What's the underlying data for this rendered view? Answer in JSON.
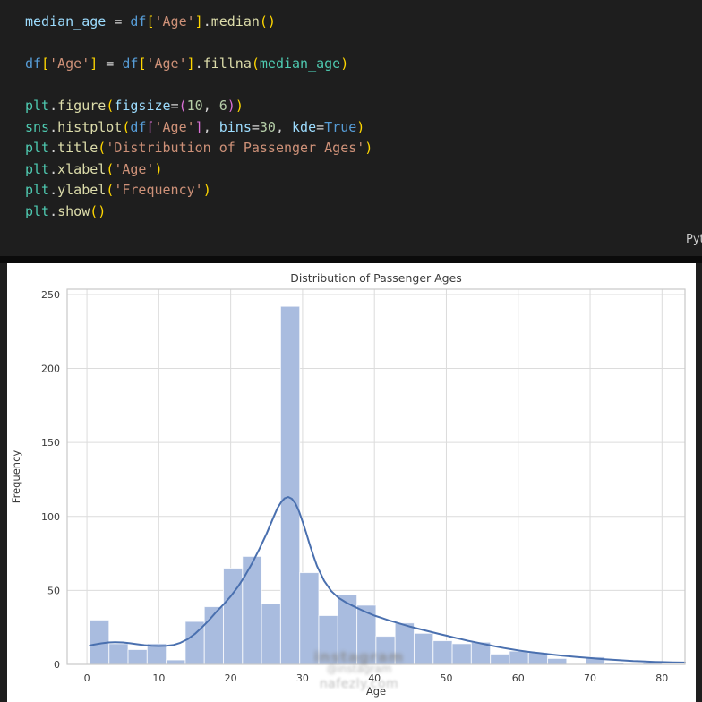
{
  "editor": {
    "background": "#1e1e1e",
    "language_label": "Pyt",
    "code_lines": [
      [
        [
          "var",
          "median_age"
        ],
        [
          "op",
          " = "
        ],
        [
          "df",
          "df"
        ],
        [
          "b1",
          "["
        ],
        [
          "str",
          "'Age'"
        ],
        [
          "b1",
          "]"
        ],
        [
          "op",
          "."
        ],
        [
          "fn",
          "median"
        ],
        [
          "b1",
          "()"
        ]
      ],
      [],
      [
        [
          "df",
          "df"
        ],
        [
          "b1",
          "["
        ],
        [
          "str",
          "'Age'"
        ],
        [
          "b1",
          "]"
        ],
        [
          "op",
          " = "
        ],
        [
          "df",
          "df"
        ],
        [
          "b1",
          "["
        ],
        [
          "str",
          "'Age'"
        ],
        [
          "b1",
          "]"
        ],
        [
          "op",
          "."
        ],
        [
          "fn",
          "fillna"
        ],
        [
          "b1",
          "("
        ],
        [
          "teal",
          "median_age"
        ],
        [
          "b1",
          ")"
        ]
      ],
      [],
      [
        [
          "mod",
          "plt"
        ],
        [
          "op",
          "."
        ],
        [
          "fn",
          "figure"
        ],
        [
          "b1",
          "("
        ],
        [
          "var",
          "figsize"
        ],
        [
          "op",
          "="
        ],
        [
          "b2",
          "("
        ],
        [
          "num",
          "10"
        ],
        [
          "op",
          ", "
        ],
        [
          "num",
          "6"
        ],
        [
          "b2",
          ")"
        ],
        [
          "b1",
          ")"
        ]
      ],
      [
        [
          "mod",
          "sns"
        ],
        [
          "op",
          "."
        ],
        [
          "fn",
          "histplot"
        ],
        [
          "b1",
          "("
        ],
        [
          "df",
          "df"
        ],
        [
          "b2",
          "["
        ],
        [
          "str",
          "'Age'"
        ],
        [
          "b2",
          "]"
        ],
        [
          "op",
          ", "
        ],
        [
          "var",
          "bins"
        ],
        [
          "op",
          "="
        ],
        [
          "num",
          "30"
        ],
        [
          "op",
          ", "
        ],
        [
          "var",
          "kde"
        ],
        [
          "op",
          "="
        ],
        [
          "kw",
          "True"
        ],
        [
          "b1",
          ")"
        ]
      ],
      [
        [
          "mod",
          "plt"
        ],
        [
          "op",
          "."
        ],
        [
          "fn",
          "title"
        ],
        [
          "b1",
          "("
        ],
        [
          "str",
          "'Distribution of Passenger Ages'"
        ],
        [
          "b1",
          ")"
        ]
      ],
      [
        [
          "mod",
          "plt"
        ],
        [
          "op",
          "."
        ],
        [
          "fn",
          "xlabel"
        ],
        [
          "b1",
          "("
        ],
        [
          "str",
          "'Age'"
        ],
        [
          "b1",
          ")"
        ]
      ],
      [
        [
          "mod",
          "plt"
        ],
        [
          "op",
          "."
        ],
        [
          "fn",
          "ylabel"
        ],
        [
          "b1",
          "("
        ],
        [
          "str",
          "'Frequency'"
        ],
        [
          "b1",
          ")"
        ]
      ],
      [
        [
          "mod",
          "plt"
        ],
        [
          "op",
          "."
        ],
        [
          "fn",
          "show"
        ],
        [
          "b1",
          "()"
        ]
      ]
    ]
  },
  "watermark": {
    "line1": "instagram",
    "line2": "@instagram",
    "line3": "nafezly.com"
  },
  "chart_data": {
    "type": "bar",
    "subtype": "histogram-with-kde",
    "title": "Distribution of Passenger Ages",
    "xlabel": "Age",
    "ylabel": "Frequency",
    "grid": true,
    "legend": false,
    "xlim": [
      -2.75,
      83.2
    ],
    "ylim": [
      0,
      253.6
    ],
    "xticks": [
      0,
      10,
      20,
      30,
      40,
      50,
      60,
      70,
      80
    ],
    "yticks": [
      0,
      50,
      100,
      150,
      200,
      250
    ],
    "bins": 30,
    "bin_start": 0.42,
    "bin_width": 2.6527,
    "values": [
      30,
      14,
      10,
      14,
      3,
      29,
      39,
      65,
      73,
      41,
      242,
      62,
      33,
      47,
      40,
      19,
      28,
      21,
      16,
      14,
      15,
      7,
      9,
      8,
      4,
      0,
      5,
      1,
      0,
      1
    ],
    "kde": [
      [
        0.42,
        12.8
      ],
      [
        1,
        13.4
      ],
      [
        2,
        14.2
      ],
      [
        3,
        14.8
      ],
      [
        4,
        15
      ],
      [
        5,
        14.8
      ],
      [
        6,
        14.3
      ],
      [
        7,
        13.6
      ],
      [
        8,
        13
      ],
      [
        9,
        12.6
      ],
      [
        10,
        12.4
      ],
      [
        11,
        12.5
      ],
      [
        12,
        13.1
      ],
      [
        13,
        14.6
      ],
      [
        14,
        17
      ],
      [
        15,
        20.5
      ],
      [
        16,
        25
      ],
      [
        17,
        30
      ],
      [
        18,
        35.5
      ],
      [
        19,
        40.5
      ],
      [
        20,
        46
      ],
      [
        21,
        52.5
      ],
      [
        22,
        60
      ],
      [
        23,
        68.5
      ],
      [
        24,
        78
      ],
      [
        25,
        88.5
      ],
      [
        26,
        100
      ],
      [
        26.5,
        105.5
      ],
      [
        27,
        109.5
      ],
      [
        27.5,
        112.2
      ],
      [
        28,
        113.2
      ],
      [
        28.5,
        112
      ],
      [
        29,
        108.8
      ],
      [
        29.5,
        103.5
      ],
      [
        30,
        96.5
      ],
      [
        30.5,
        89
      ],
      [
        31,
        81
      ],
      [
        31.5,
        73.5
      ],
      [
        32,
        66.5
      ],
      [
        33,
        56.5
      ],
      [
        34,
        49.5
      ],
      [
        35,
        45
      ],
      [
        36,
        42
      ],
      [
        37,
        39.5
      ],
      [
        38,
        37.2
      ],
      [
        39,
        35
      ],
      [
        40,
        33
      ],
      [
        41,
        31.4
      ],
      [
        42,
        29.8
      ],
      [
        43,
        28.3
      ],
      [
        44,
        26.9
      ],
      [
        45,
        25.5
      ],
      [
        46,
        24.2
      ],
      [
        47,
        23
      ],
      [
        48,
        21.8
      ],
      [
        49,
        20.6
      ],
      [
        50,
        19.4
      ],
      [
        51,
        18.2
      ],
      [
        52,
        17.1
      ],
      [
        53,
        16
      ],
      [
        54,
        15
      ],
      [
        55,
        14
      ],
      [
        56,
        13
      ],
      [
        57,
        12
      ],
      [
        58,
        11.1
      ],
      [
        59,
        10.3
      ],
      [
        60,
        9.5
      ],
      [
        61,
        8.8
      ],
      [
        62,
        8.2
      ],
      [
        63,
        7.6
      ],
      [
        64,
        7
      ],
      [
        65,
        6.5
      ],
      [
        66,
        6
      ],
      [
        67,
        5.5
      ],
      [
        68,
        5.1
      ],
      [
        69,
        4.7
      ],
      [
        70,
        4.3
      ],
      [
        71,
        3.9
      ],
      [
        72,
        3.5
      ],
      [
        73,
        3.2
      ],
      [
        74,
        2.9
      ],
      [
        75,
        2.6
      ],
      [
        76,
        2.3
      ],
      [
        77,
        2.1
      ],
      [
        78,
        1.9
      ],
      [
        79,
        1.7
      ],
      [
        80,
        1.55
      ],
      [
        81.5,
        1.4
      ],
      [
        83.2,
        1.3
      ]
    ],
    "colors": {
      "bar_fill": "#a9bcdf",
      "bar_edge": "rgba(255,255,255,0.75)",
      "kde_line": "#4a70af",
      "grid": "#dcdcdc",
      "spine": "#c9c9c9",
      "text": "#3b3b3b"
    }
  }
}
